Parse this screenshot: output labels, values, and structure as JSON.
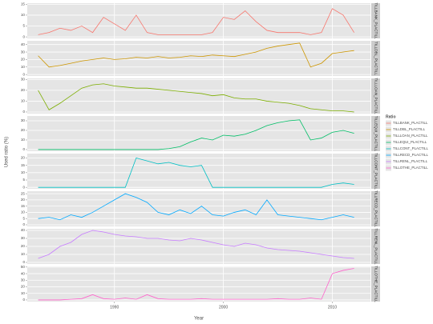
{
  "chart_data": {
    "type": "line",
    "x_label": "Year",
    "y_label": "Used ratio (%)",
    "legend_title": "Ratio",
    "legend_position": "right",
    "grid": true,
    "x": [
      1983,
      1984,
      1985,
      1986,
      1987,
      1988,
      1989,
      1990,
      1991,
      1992,
      1993,
      1994,
      1995,
      1996,
      1997,
      1998,
      1999,
      2000,
      2001,
      2002,
      2003,
      2004,
      2005,
      2006,
      2007,
      2008,
      2009,
      2010,
      2011,
      2012
    ],
    "xlim": [
      1982,
      2013.5
    ],
    "xticks": [
      1990,
      2000,
      2010
    ],
    "series": [
      {
        "name": "TILLBANK_PLACTILL",
        "color": "#F8766D",
        "ylim": [
          -0.7,
          15.5
        ],
        "yticks": [
          0,
          5,
          10,
          15
        ],
        "values": [
          1,
          2,
          4,
          3,
          5,
          2,
          9,
          6,
          3,
          10,
          2,
          1,
          1,
          1,
          1,
          1,
          2,
          9,
          8,
          12,
          7,
          3,
          2,
          2,
          2,
          1,
          2,
          13,
          10,
          2
        ]
      },
      {
        "name": "TILLDBL_PLACTILL",
        "color": "#CD9600",
        "ylim": [
          -2,
          45
        ],
        "yticks": [
          0,
          10,
          20,
          30,
          40
        ],
        "values": [
          25,
          10,
          12,
          15,
          18,
          20,
          22,
          20,
          21,
          23,
          22,
          24,
          22,
          23,
          25,
          24,
          26,
          25,
          24,
          27,
          30,
          35,
          38,
          40,
          42,
          10,
          15,
          28,
          30,
          32
        ]
      },
      {
        "name": "TILLLOAN_PLACTILL",
        "color": "#7CAE00",
        "ylim": [
          -1.5,
          31
        ],
        "yticks": [
          0,
          10,
          20,
          30
        ],
        "values": [
          20,
          2,
          8,
          15,
          22,
          25,
          26,
          24,
          23,
          22,
          22,
          21,
          20,
          19,
          18,
          17,
          15,
          16,
          13,
          12,
          12,
          10,
          9,
          8,
          6,
          3,
          2,
          1,
          1,
          0
        ]
      },
      {
        "name": "TILLEQUI_PLACTILL",
        "color": "#00BE67",
        "ylim": [
          -1.7,
          35
        ],
        "yticks": [
          0,
          10,
          20,
          30
        ],
        "values": [
          0,
          0,
          0,
          0,
          0,
          0,
          0,
          0,
          0,
          0,
          0,
          0,
          1,
          3,
          8,
          12,
          10,
          15,
          14,
          16,
          20,
          25,
          28,
          30,
          31,
          10,
          12,
          18,
          20,
          17
        ]
      },
      {
        "name": "TILLCONT_PLACTILL",
        "color": "#00BFC4",
        "ylim": [
          -1,
          23
        ],
        "yticks": [
          0,
          5,
          10,
          15,
          20
        ],
        "values": [
          0,
          0,
          0,
          0,
          0,
          0,
          0,
          0,
          0,
          20,
          18,
          16,
          17,
          15,
          14,
          15,
          0,
          0,
          0,
          0,
          0,
          0,
          0,
          0,
          0,
          0,
          0,
          2,
          3,
          2
        ]
      },
      {
        "name": "TILLRECD_PLACTILL",
        "color": "#00A9FF",
        "ylim": [
          -1.3,
          27
        ],
        "yticks": [
          0,
          5,
          10,
          15,
          20,
          25
        ],
        "values": [
          5,
          6,
          4,
          8,
          6,
          10,
          15,
          20,
          25,
          22,
          18,
          10,
          8,
          12,
          9,
          15,
          8,
          7,
          10,
          12,
          8,
          20,
          8,
          7,
          6,
          5,
          4,
          6,
          8,
          6
        ]
      },
      {
        "name": "TILLRENL_PLACTILL",
        "color": "#C77CFF",
        "ylim": [
          -2,
          42
        ],
        "yticks": [
          0,
          10,
          20,
          30,
          40
        ],
        "values": [
          5,
          10,
          20,
          25,
          35,
          40,
          38,
          35,
          33,
          32,
          30,
          30,
          28,
          27,
          30,
          28,
          25,
          22,
          20,
          24,
          22,
          18,
          16,
          15,
          14,
          12,
          10,
          8,
          6,
          5
        ]
      },
      {
        "name": "TILLOTHE_PLACTILL",
        "color": "#FF61CC",
        "ylim": [
          -2.5,
          51
        ],
        "yticks": [
          0,
          10,
          20,
          30,
          40,
          50
        ],
        "values": [
          0,
          0,
          0,
          1,
          2,
          8,
          2,
          1,
          3,
          1,
          8,
          2,
          1,
          1,
          1,
          2,
          1,
          1,
          1,
          1,
          1,
          1,
          2,
          1,
          1,
          3,
          1,
          40,
          45,
          48
        ]
      }
    ]
  }
}
